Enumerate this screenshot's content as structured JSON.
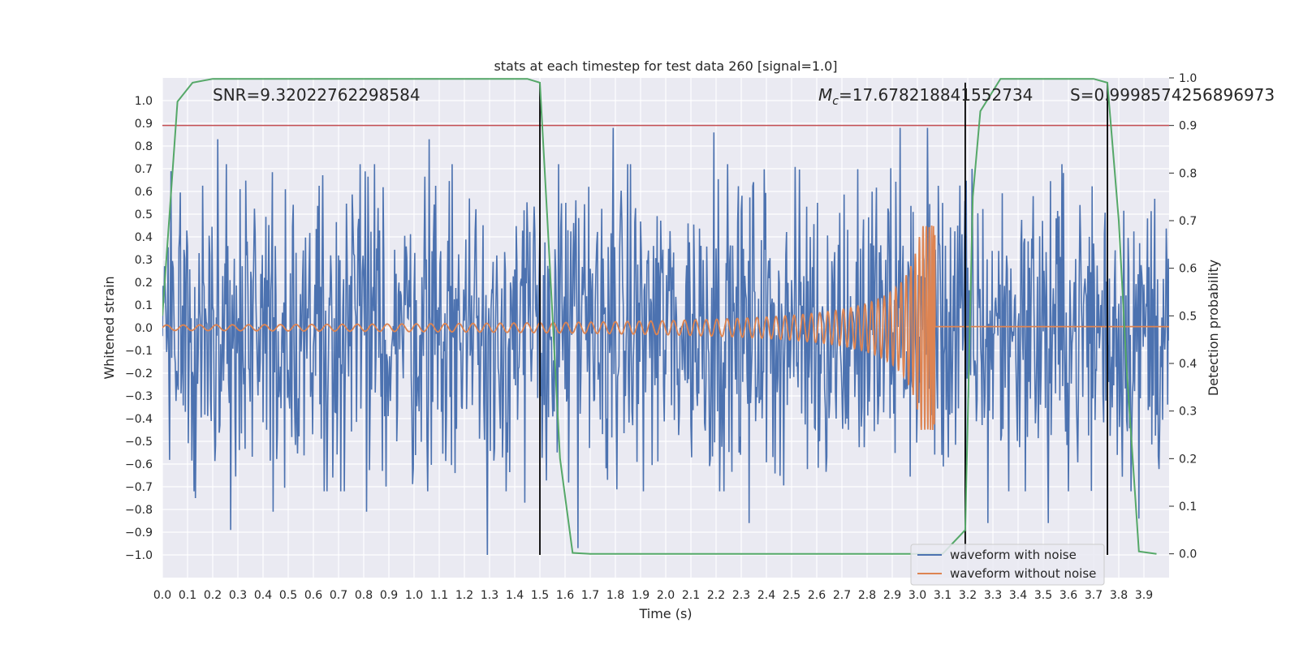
{
  "chart_data": {
    "type": "line",
    "title": "stats at each timestep for test data 260 [signal=1.0]",
    "xlabel": "Time (s)",
    "ylabel": "Whitened strain",
    "y2label": "Detection probability",
    "xlim": [
      0.0,
      4.0
    ],
    "ylim": [
      -1.1,
      1.1
    ],
    "y2lim": [
      -0.05,
      1.0
    ],
    "x_ticks": [
      "0.0",
      "0.1",
      "0.2",
      "0.3",
      "0.4",
      "0.5",
      "0.6",
      "0.7",
      "0.8",
      "0.9",
      "1.0",
      "1.1",
      "1.2",
      "1.3",
      "1.4",
      "1.5",
      "1.6",
      "1.7",
      "1.8",
      "1.9",
      "2.0",
      "2.1",
      "2.2",
      "2.3",
      "2.4",
      "2.5",
      "2.6",
      "2.7",
      "2.8",
      "2.9",
      "3.0",
      "3.1",
      "3.2",
      "3.3",
      "3.4",
      "3.5",
      "3.6",
      "3.7",
      "3.8",
      "3.9"
    ],
    "y_ticks": [
      "1.0",
      "0.9",
      "0.8",
      "0.7",
      "0.6",
      "0.5",
      "0.4",
      "0.3",
      "0.2",
      "0.1",
      "0.0",
      "−0.1",
      "−0.2",
      "−0.3",
      "−0.4",
      "−0.5",
      "−0.6",
      "−0.7",
      "−0.8",
      "−0.9",
      "−1.0"
    ],
    "y2_ticks": [
      "1.0",
      "0.9",
      "0.8",
      "0.7",
      "0.6",
      "0.5",
      "0.4",
      "0.3",
      "0.2",
      "0.1",
      "0.0"
    ],
    "annotations": {
      "snr": "SNR=9.32022762298584",
      "mc_symbol": "M",
      "mc_sub": "c",
      "mc_value": "=17.678218841552734",
      "s": "S=0.9998574256896973"
    },
    "threshold": {
      "value": 0.9,
      "axis": "y2",
      "color": "#c44e52"
    },
    "vertical_lines": [
      {
        "x": 1.5,
        "y_top": 0.99,
        "y_bottom": -1.0
      },
      {
        "x": 3.19,
        "y_top": 0.99,
        "y_bottom": -1.0
      },
      {
        "x": 3.755,
        "y_top": 0.99,
        "y_bottom": -1.0
      }
    ],
    "series": [
      {
        "name": "waveform with noise",
        "color": "#4c72b0",
        "axis": "y",
        "kind": "noise",
        "x_range": [
          0.0,
          4.0
        ],
        "samples": 1400,
        "typical_amplitude": 0.55,
        "peaks": [
          {
            "x": 0.22,
            "y": 0.83
          },
          {
            "x": 1.06,
            "y": 0.83
          },
          {
            "x": 1.79,
            "y": 0.88
          },
          {
            "x": 2.19,
            "y": 0.86
          },
          {
            "x": 2.33,
            "y": 0.85
          },
          {
            "x": 2.93,
            "y": 0.88
          },
          {
            "x": 3.04,
            "y": 0.88
          },
          {
            "x": 3.28,
            "y": 0.78
          },
          {
            "x": 1.29,
            "y": -1.0
          },
          {
            "x": 0.27,
            "y": -0.89
          },
          {
            "x": 1.65,
            "y": -0.97
          },
          {
            "x": 3.19,
            "y": -0.74
          },
          {
            "x": 0.44,
            "y": -0.81
          },
          {
            "x": 0.81,
            "y": -0.81
          },
          {
            "x": 2.33,
            "y": -0.86
          },
          {
            "x": 3.28,
            "y": -0.86
          },
          {
            "x": 3.52,
            "y": -0.86
          },
          {
            "x": 3.88,
            "y": -0.84
          },
          {
            "x": 0.13,
            "y": -0.75
          },
          {
            "x": 1.44,
            "y": -0.77
          }
        ]
      },
      {
        "name": "waveform without noise",
        "color": "#dd8452",
        "axis": "y",
        "kind": "chirp",
        "merger_time": 3.07,
        "base_amplitude": 0.012,
        "peak_amplitude": 0.45,
        "start_frequency": 15,
        "chirp_mass": 17.678218841552734
      },
      {
        "name": "Detection probability",
        "color": "#55a868",
        "axis": "y2",
        "kind": "probability",
        "x": [
          0.0,
          0.06,
          0.12,
          0.2,
          0.5,
          1.0,
          1.45,
          1.5,
          1.53,
          1.58,
          1.63,
          1.7,
          2.0,
          2.5,
          3.0,
          3.1,
          3.19,
          3.22,
          3.25,
          3.33,
          3.5,
          3.7,
          3.755,
          3.8,
          3.83,
          3.88,
          3.95
        ],
        "y": [
          0.5,
          0.95,
          0.99,
          0.998,
          0.998,
          0.998,
          0.998,
          0.99,
          0.7,
          0.2,
          0.002,
          0.0,
          0.0,
          0.0,
          0.0,
          0.0,
          0.05,
          0.75,
          0.93,
          0.998,
          0.998,
          0.998,
          0.99,
          0.7,
          0.4,
          0.005,
          0.0
        ]
      }
    ],
    "legend": {
      "position": "lower-right",
      "entries": [
        "waveform with noise",
        "waveform without noise"
      ]
    }
  }
}
